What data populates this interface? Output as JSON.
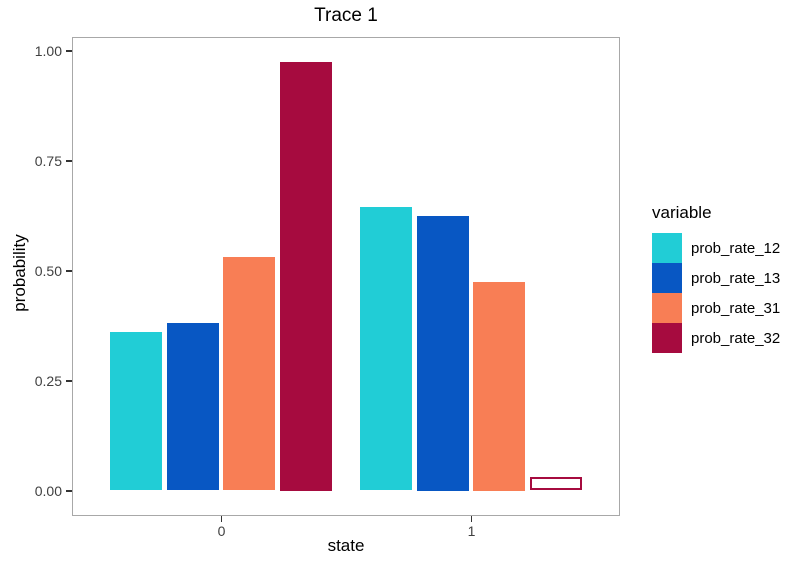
{
  "chart_data": {
    "type": "bar",
    "title": "Trace 1",
    "xlabel": "state",
    "ylabel": "probability",
    "categories": [
      "0",
      "1"
    ],
    "series": [
      {
        "name": "prob_rate_12",
        "color": "#21cdd6",
        "values": [
          0.36,
          0.645
        ]
      },
      {
        "name": "prob_rate_13",
        "color": "#0857c3",
        "values": [
          0.38,
          0.625
        ]
      },
      {
        "name": "prob_rate_31",
        "color": "#f87e55",
        "values": [
          0.53,
          0.475
        ]
      },
      {
        "name": "prob_rate_32",
        "color": "#a60b3f",
        "values": [
          0.975,
          0.03
        ]
      }
    ],
    "outlined_bar": {
      "series_index": 3,
      "category_index": 1,
      "fill": "#ffffff"
    },
    "y_ticks": [
      {
        "value": 0.0,
        "label": "0.00"
      },
      {
        "value": 0.25,
        "label": "0.25"
      },
      {
        "value": 0.5,
        "label": "0.50"
      },
      {
        "value": 0.75,
        "label": "0.75"
      },
      {
        "value": 1.0,
        "label": "1.00"
      }
    ],
    "ylim": [
      0,
      1.03
    ],
    "grid": false,
    "legend_title": "variable",
    "legend_position": "right",
    "panel_border_color": "#a8a8a8",
    "background_color": "#ffffff"
  }
}
